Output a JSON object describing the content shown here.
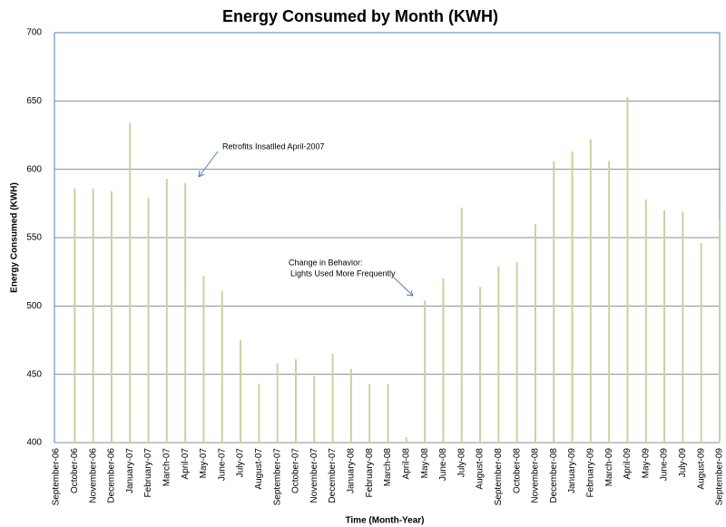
{
  "chart_data": {
    "type": "bar",
    "title": "Energy Consumed by Month (KWH)",
    "x_label": "Time (Month-Year)",
    "y_label": "Energy Consumed (KWH)",
    "categories": [
      "September-06",
      "October-06",
      "November-06",
      "December-06",
      "January-07",
      "February-07",
      "March-07",
      "April-07",
      "May-07",
      "June-07",
      "July-07",
      "August-07",
      "September-07",
      "October-07",
      "November-07",
      "December-07",
      "January-08",
      "February-08",
      "March-08",
      "April-08",
      "May-08",
      "June-08",
      "July-08",
      "August-08",
      "September-08",
      "October-08",
      "November-08",
      "December-08",
      "January-09",
      "February-09",
      "March-09",
      "April-09",
      "May-09",
      "June-09",
      "July-09",
      "August-09",
      "September-09"
    ],
    "values": [
      null,
      586,
      586,
      584,
      634,
      579,
      593,
      590,
      522,
      511,
      475,
      443,
      458,
      461,
      449,
      465,
      454,
      443,
      443,
      404,
      504,
      520,
      572,
      514,
      529,
      532,
      560,
      606,
      613,
      622,
      606,
      653,
      578,
      570,
      569,
      546,
      563
    ],
    "color": "#c3d69b",
    "ylim": [
      400,
      700
    ],
    "yticks": [
      400,
      450,
      500,
      550,
      600,
      650,
      700
    ],
    "grid": true,
    "annotations": [
      "Retrofits Insatlled April-2007",
      "Change in Behavior:",
      "Lights Used More Frequently"
    ]
  }
}
